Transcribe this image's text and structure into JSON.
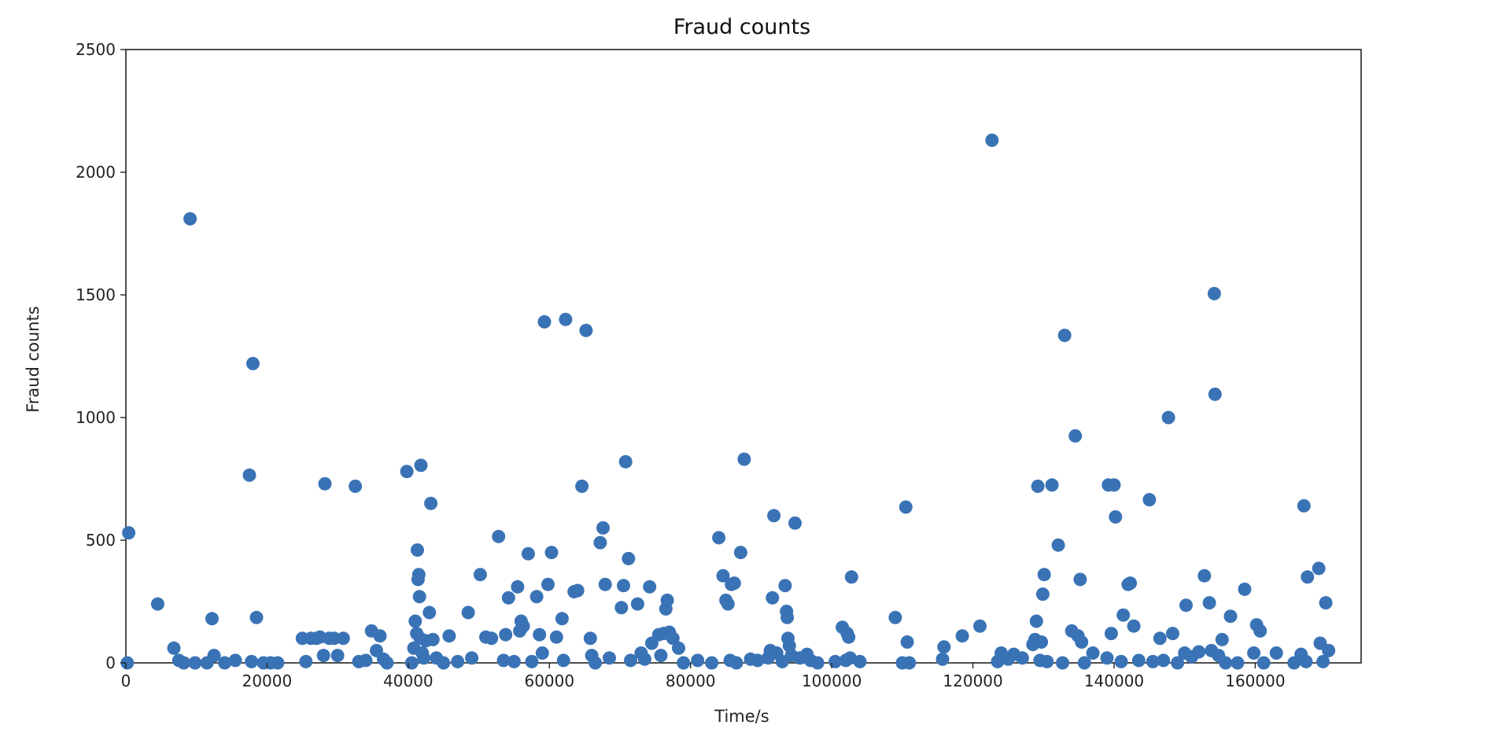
{
  "chart_data": {
    "type": "scatter",
    "title": "Fraud counts",
    "xlabel": "Time/s",
    "ylabel": "Fraud counts",
    "xlim": [
      0,
      175000
    ],
    "ylim": [
      0,
      2500
    ],
    "xticks": [
      0,
      20000,
      40000,
      60000,
      80000,
      100000,
      120000,
      140000,
      160000
    ],
    "yticks": [
      0,
      500,
      1000,
      1500,
      2000,
      2500
    ],
    "xtick_labels": [
      "0",
      "20000",
      "40000",
      "60000",
      "80000",
      "100000",
      "120000",
      "140000",
      "160000"
    ],
    "ytick_labels": [
      "0",
      "500",
      "1000",
      "1500",
      "2000",
      "2500"
    ],
    "grid": false,
    "legend": false,
    "marker_color": "#3a73b5",
    "points": [
      [
        400,
        530
      ],
      [
        200,
        0
      ],
      [
        4500,
        240
      ],
      [
        6800,
        60
      ],
      [
        7500,
        10
      ],
      [
        8200,
        0
      ],
      [
        9100,
        1810
      ],
      [
        9800,
        0
      ],
      [
        12200,
        180
      ],
      [
        12500,
        30
      ],
      [
        11500,
        0
      ],
      [
        14000,
        0
      ],
      [
        15500,
        10
      ],
      [
        17500,
        765
      ],
      [
        17800,
        5
      ],
      [
        18000,
        1220
      ],
      [
        18500,
        185
      ],
      [
        19500,
        0
      ],
      [
        20500,
        0
      ],
      [
        21500,
        0
      ],
      [
        25000,
        100
      ],
      [
        25500,
        5
      ],
      [
        26200,
        100
      ],
      [
        27000,
        100
      ],
      [
        27500,
        105
      ],
      [
        28000,
        30
      ],
      [
        28200,
        730
      ],
      [
        28800,
        100
      ],
      [
        29500,
        100
      ],
      [
        30000,
        30
      ],
      [
        30800,
        100
      ],
      [
        32500,
        720
      ],
      [
        33000,
        5
      ],
      [
        34000,
        10
      ],
      [
        34800,
        130
      ],
      [
        35500,
        50
      ],
      [
        36000,
        110
      ],
      [
        36500,
        15
      ],
      [
        37000,
        0
      ],
      [
        39800,
        780
      ],
      [
        40500,
        0
      ],
      [
        40800,
        60
      ],
      [
        41000,
        170
      ],
      [
        41200,
        120
      ],
      [
        41300,
        460
      ],
      [
        41400,
        340
      ],
      [
        41500,
        360
      ],
      [
        41600,
        270
      ],
      [
        41700,
        100
      ],
      [
        41800,
        805
      ],
      [
        42000,
        40
      ],
      [
        42200,
        20
      ],
      [
        42500,
        90
      ],
      [
        43000,
        205
      ],
      [
        43200,
        650
      ],
      [
        43500,
        95
      ],
      [
        44000,
        20
      ],
      [
        45000,
        0
      ],
      [
        45800,
        110
      ],
      [
        47000,
        5
      ],
      [
        48500,
        205
      ],
      [
        49000,
        20
      ],
      [
        50200,
        360
      ],
      [
        51000,
        105
      ],
      [
        51800,
        100
      ],
      [
        52800,
        515
      ],
      [
        53500,
        10
      ],
      [
        53800,
        115
      ],
      [
        54200,
        265
      ],
      [
        55000,
        5
      ],
      [
        55500,
        310
      ],
      [
        55800,
        130
      ],
      [
        56000,
        170
      ],
      [
        56300,
        150
      ],
      [
        57000,
        445
      ],
      [
        57500,
        5
      ],
      [
        58200,
        270
      ],
      [
        58600,
        115
      ],
      [
        59000,
        40
      ],
      [
        59300,
        1390
      ],
      [
        59800,
        320
      ],
      [
        60300,
        450
      ],
      [
        61000,
        105
      ],
      [
        61800,
        180
      ],
      [
        62300,
        1400
      ],
      [
        62000,
        10
      ],
      [
        63500,
        290
      ],
      [
        64000,
        295
      ],
      [
        64600,
        720
      ],
      [
        65200,
        1355
      ],
      [
        65800,
        100
      ],
      [
        66000,
        30
      ],
      [
        66500,
        0
      ],
      [
        67200,
        490
      ],
      [
        67600,
        550
      ],
      [
        67900,
        320
      ],
      [
        68500,
        20
      ],
      [
        70200,
        225
      ],
      [
        70500,
        315
      ],
      [
        70800,
        820
      ],
      [
        71200,
        425
      ],
      [
        71500,
        10
      ],
      [
        72500,
        240
      ],
      [
        73000,
        40
      ],
      [
        73500,
        15
      ],
      [
        74200,
        310
      ],
      [
        74500,
        80
      ],
      [
        75500,
        115
      ],
      [
        75800,
        30
      ],
      [
        76200,
        120
      ],
      [
        76500,
        220
      ],
      [
        76700,
        255
      ],
      [
        77000,
        125
      ],
      [
        77500,
        100
      ],
      [
        78300,
        60
      ],
      [
        79000,
        0
      ],
      [
        81000,
        10
      ],
      [
        83000,
        0
      ],
      [
        84000,
        510
      ],
      [
        84600,
        355
      ],
      [
        85000,
        255
      ],
      [
        85300,
        240
      ],
      [
        85600,
        10
      ],
      [
        85800,
        320
      ],
      [
        86200,
        325
      ],
      [
        86500,
        0
      ],
      [
        87100,
        450
      ],
      [
        87600,
        830
      ],
      [
        88500,
        15
      ],
      [
        89500,
        10
      ],
      [
        91000,
        20
      ],
      [
        91300,
        50
      ],
      [
        91600,
        265
      ],
      [
        91800,
        600
      ],
      [
        92200,
        40
      ],
      [
        93000,
        5
      ],
      [
        93400,
        315
      ],
      [
        93600,
        210
      ],
      [
        93700,
        185
      ],
      [
        93800,
        100
      ],
      [
        94000,
        70
      ],
      [
        94300,
        30
      ],
      [
        94800,
        570
      ],
      [
        95500,
        20
      ],
      [
        96500,
        35
      ],
      [
        97000,
        10
      ],
      [
        98000,
        0
      ],
      [
        100500,
        5
      ],
      [
        101500,
        145
      ],
      [
        102000,
        10
      ],
      [
        102200,
        120
      ],
      [
        102400,
        105
      ],
      [
        102600,
        20
      ],
      [
        102800,
        350
      ],
      [
        104000,
        5
      ],
      [
        109000,
        185
      ],
      [
        110000,
        0
      ],
      [
        110500,
        635
      ],
      [
        110700,
        85
      ],
      [
        111000,
        0
      ],
      [
        115700,
        15
      ],
      [
        115900,
        65
      ],
      [
        118500,
        110
      ],
      [
        121000,
        150
      ],
      [
        122700,
        2130
      ],
      [
        123500,
        5
      ],
      [
        124000,
        40
      ],
      [
        125000,
        15
      ],
      [
        125800,
        35
      ],
      [
        127000,
        20
      ],
      [
        128500,
        75
      ],
      [
        128800,
        95
      ],
      [
        129000,
        170
      ],
      [
        129200,
        720
      ],
      [
        129500,
        10
      ],
      [
        129700,
        85
      ],
      [
        129900,
        280
      ],
      [
        130100,
        360
      ],
      [
        130500,
        5
      ],
      [
        131200,
        725
      ],
      [
        132100,
        480
      ],
      [
        132700,
        0
      ],
      [
        133000,
        1335
      ],
      [
        134000,
        130
      ],
      [
        134500,
        925
      ],
      [
        134900,
        110
      ],
      [
        135200,
        340
      ],
      [
        135400,
        85
      ],
      [
        135800,
        0
      ],
      [
        137000,
        40
      ],
      [
        139000,
        20
      ],
      [
        139200,
        725
      ],
      [
        139600,
        120
      ],
      [
        140000,
        725
      ],
      [
        140200,
        595
      ],
      [
        141000,
        5
      ],
      [
        141300,
        195
      ],
      [
        142000,
        320
      ],
      [
        142300,
        325
      ],
      [
        142800,
        150
      ],
      [
        143500,
        10
      ],
      [
        145000,
        665
      ],
      [
        145500,
        5
      ],
      [
        146500,
        100
      ],
      [
        147000,
        10
      ],
      [
        147700,
        1000
      ],
      [
        148300,
        120
      ],
      [
        149000,
        0
      ],
      [
        150000,
        40
      ],
      [
        150200,
        235
      ],
      [
        151000,
        25
      ],
      [
        152000,
        45
      ],
      [
        152800,
        355
      ],
      [
        153500,
        245
      ],
      [
        153800,
        50
      ],
      [
        154200,
        1505
      ],
      [
        154300,
        1095
      ],
      [
        154800,
        30
      ],
      [
        155300,
        95
      ],
      [
        155800,
        0
      ],
      [
        156500,
        190
      ],
      [
        157500,
        0
      ],
      [
        158500,
        300
      ],
      [
        159800,
        40
      ],
      [
        160200,
        155
      ],
      [
        160700,
        130
      ],
      [
        161200,
        0
      ],
      [
        163000,
        40
      ],
      [
        165500,
        0
      ],
      [
        166500,
        35
      ],
      [
        166900,
        640
      ],
      [
        167200,
        5
      ],
      [
        167400,
        350
      ],
      [
        169000,
        385
      ],
      [
        169200,
        80
      ],
      [
        169600,
        5
      ],
      [
        170000,
        245
      ],
      [
        170400,
        50
      ]
    ]
  }
}
